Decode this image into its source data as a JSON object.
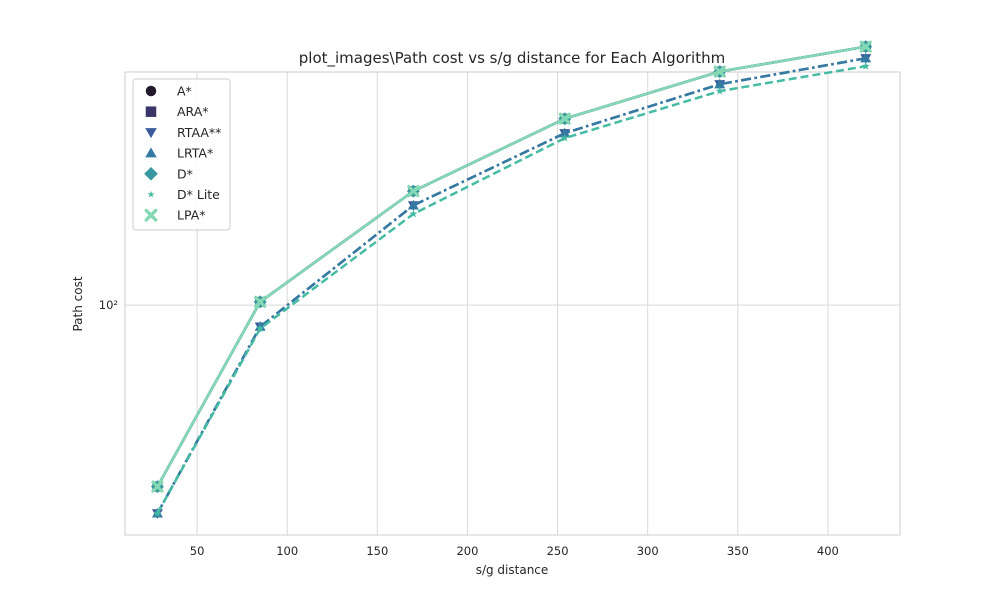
{
  "chart_data": {
    "type": "line",
    "title": "plot_images\\Path cost vs s/g distance for Each Algorithm",
    "xlabel": "s/g distance",
    "ylabel": "Path cost",
    "x": [
      28,
      85,
      170,
      254,
      340,
      421
    ],
    "xlim": [
      10,
      440
    ],
    "ylim": [
      25.5,
      400
    ],
    "yscale": "log",
    "xticks": [
      50,
      100,
      150,
      200,
      250,
      300,
      350,
      400
    ],
    "xtick_labels": [
      "50",
      "100",
      "150",
      "200",
      "250",
      "300",
      "350",
      "400"
    ],
    "yticks": [
      100
    ],
    "ytick_labels": [
      "10²"
    ],
    "grid": true,
    "legend_position": "top-left",
    "series": [
      {
        "name": "A*",
        "values": [
          34,
          102,
          197,
          303,
          401,
          465
        ],
        "color": "#231a2e",
        "marker": "circle",
        "dash": "solid"
      },
      {
        "name": "ARA*",
        "values": [
          34,
          102,
          197,
          303,
          401,
          465
        ],
        "color": "#3b3669",
        "marker": "square",
        "dash": "solid"
      },
      {
        "name": "RTAA**",
        "values": [
          29,
          88,
          181,
          278,
          372,
          434
        ],
        "color": "#3b5b9e",
        "marker": "triangle-down",
        "dash": "dashdot"
      },
      {
        "name": "LRTA*",
        "values": [
          29,
          88,
          181,
          278,
          372,
          434
        ],
        "color": "#357ba1",
        "marker": "triangle-up",
        "dash": "dashdot"
      },
      {
        "name": "D*",
        "values": [
          34,
          102,
          197,
          303,
          401,
          465
        ],
        "color": "#37999f",
        "marker": "diamond",
        "dash": "solid"
      },
      {
        "name": "D* Lite",
        "values": [
          29,
          87,
          172,
          270,
          357,
          414
        ],
        "color": "#46bba4",
        "marker": "star",
        "dash": "dashed"
      },
      {
        "name": "LPA*",
        "values": [
          34,
          102,
          197,
          303,
          401,
          465
        ],
        "color": "#84d9b4",
        "marker": "x",
        "dash": "solid"
      }
    ]
  }
}
